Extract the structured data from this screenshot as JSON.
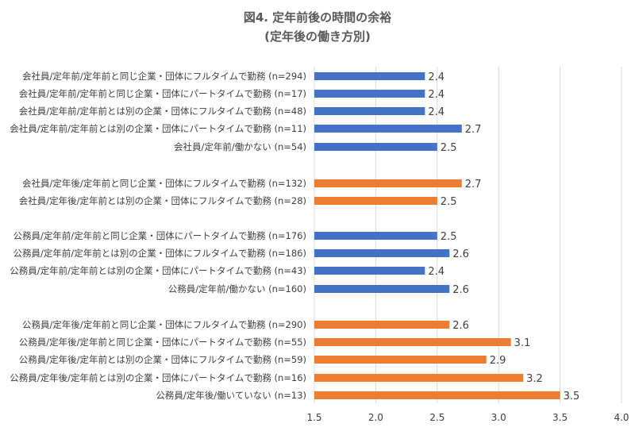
{
  "chart_data": {
    "type": "bar",
    "orientation": "horizontal",
    "title": "図4.  定年前後の時間の余裕",
    "subtitle": "(定年後の働き方別)",
    "xlim": [
      1.5,
      4.0
    ],
    "xticks": [
      "1.5",
      "2.0",
      "2.5",
      "3.0",
      "3.5",
      "4.0"
    ],
    "grid": true,
    "legend": "none",
    "colors": {
      "before": "#4472C4",
      "after": "#ED7D31"
    },
    "bars": [
      {
        "label": "会社員/定年前/定年前と同じ企業・団体にフルタイムで勤務 (n=294)",
        "value": 2.4,
        "value_label": "2.4",
        "group": "before"
      },
      {
        "label": "会社員/定年前/定年前と同じ企業・団体にパートタイムで勤務 (n=17)",
        "value": 2.4,
        "value_label": "2.4",
        "group": "before"
      },
      {
        "label": "会社員/定年前/定年前とは別の企業・団体にフルタイムで勤務 (n=48)",
        "value": 2.4,
        "value_label": "2.4",
        "group": "before"
      },
      {
        "label": "会社員/定年前/定年前とは別の企業・団体にパートタイムで勤務 (n=11)",
        "value": 2.7,
        "value_label": "2.7",
        "group": "before"
      },
      {
        "label": "会社員/定年前/働かない (n=54)",
        "value": 2.5,
        "value_label": "2.5",
        "group": "before"
      },
      {
        "label": "会社員/定年後/定年前と同じ企業・団体にフルタイムで勤務 (n=132)",
        "value": 2.7,
        "value_label": "2.7",
        "group": "after"
      },
      {
        "label": "会社員/定年後/定年前とは別の企業・団体にフルタイムで勤務 (n=28)",
        "value": 2.5,
        "value_label": "2.5",
        "group": "after"
      },
      {
        "label": "公務員/定年前/定年前と同じ企業・団体にパートタイムで勤務 (n=176)",
        "value": 2.5,
        "value_label": "2.5",
        "group": "before"
      },
      {
        "label": "公務員/定年前/定年前とは別の企業・団体にフルタイムで勤務 (n=186)",
        "value": 2.6,
        "value_label": "2.6",
        "group": "before"
      },
      {
        "label": "公務員/定年前/定年前とは別の企業・団体にパートタイムで勤務 (n=43)",
        "value": 2.4,
        "value_label": "2.4",
        "group": "before"
      },
      {
        "label": "公務員/定年前/働かない (n=160)",
        "value": 2.6,
        "value_label": "2.6",
        "group": "before"
      },
      {
        "label": "公務員/定年後/定年前と同じ企業・団体にフルタイムで勤務 (n=290)",
        "value": 2.6,
        "value_label": "2.6",
        "group": "after"
      },
      {
        "label": "公務員/定年後/定年前と同じ企業・団体にパートタイムで勤務 (n=55)",
        "value": 3.1,
        "value_label": "3.1",
        "group": "after"
      },
      {
        "label": "公務員/定年後/定年前とは別の企業・団体にフルタイムで勤務 (n=59)",
        "value": 2.9,
        "value_label": "2.9",
        "group": "after"
      },
      {
        "label": "公務員/定年後/定年前とは別の企業・団体にパートタイムで勤務 (n=16)",
        "value": 3.2,
        "value_label": "3.2",
        "group": "after"
      },
      {
        "label": "公務員/定年後/働いていない (n=13)",
        "value": 3.5,
        "value_label": "3.5",
        "group": "after"
      }
    ]
  }
}
